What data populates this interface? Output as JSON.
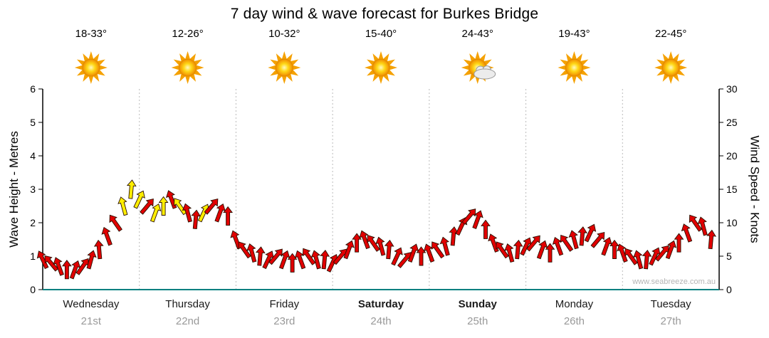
{
  "title": "7 day wind & wave forecast for Burkes Bridge",
  "watermark": "www.seabreeze.com.au",
  "colors": {
    "arrow_red": "#e10000",
    "arrow_yellow": "#ffee00",
    "arrow_outline": "#2a1000",
    "axis": "#000000",
    "grid": "#bbbbbb",
    "baseline_teal": "#008080",
    "temp_text": "#000000",
    "day_text": "#1a1a1a",
    "date_text": "#999999",
    "sun_ray": "#f5a100",
    "cloud": "#ececec"
  },
  "forecast_days": [
    {
      "temp": "18-33°",
      "icon": "sun-icon",
      "day": "Wednesday",
      "date": "21st",
      "weekend": false
    },
    {
      "temp": "12-26°",
      "icon": "sun-icon",
      "day": "Thursday",
      "date": "22nd",
      "weekend": false
    },
    {
      "temp": "10-32°",
      "icon": "sun-icon",
      "day": "Friday",
      "date": "23rd",
      "weekend": false
    },
    {
      "temp": "15-40°",
      "icon": "sun-icon",
      "day": "Saturday",
      "date": "24th",
      "weekend": true
    },
    {
      "temp": "24-43°",
      "icon": "sun-cloud-icon",
      "day": "Sunday",
      "date": "25th",
      "weekend": true
    },
    {
      "temp": "19-43°",
      "icon": "sun-icon",
      "day": "Monday",
      "date": "26th",
      "weekend": false
    },
    {
      "temp": "22-45°",
      "icon": "sun-icon",
      "day": "Tuesday",
      "date": "27th",
      "weekend": false
    }
  ],
  "chart_data": {
    "type": "scatter",
    "title": "7 day wind & wave forecast for Burkes Bridge",
    "marker": "wind-arrow",
    "x_axis": {
      "unit": "hours",
      "range": [
        0,
        168
      ],
      "day_boundaries_hours": [
        0,
        24,
        48,
        72,
        96,
        120,
        144,
        168
      ],
      "categories": [
        "Wednesday 21st",
        "Thursday 22nd",
        "Friday 23rd",
        "Saturday 24th",
        "Sunday 25th",
        "Monday 26th",
        "Tuesday 27th"
      ]
    },
    "y_left": {
      "label": "Wave Height - Metres",
      "range": [
        0,
        6
      ],
      "ticks": [
        0,
        1,
        2,
        3,
        4,
        5,
        6
      ]
    },
    "y_right": {
      "label": "Wind Speed - Knots",
      "range": [
        0,
        30
      ],
      "ticks": [
        0,
        5,
        10,
        15,
        20,
        25,
        30
      ]
    },
    "grid": {
      "vertical_day_lines": true,
      "style": "dotted"
    },
    "columns": [
      "hour",
      "wind_knots",
      "arrow_direction_deg",
      "color"
    ],
    "points": [
      [
        0,
        4.5,
        -25,
        "R"
      ],
      [
        2,
        4,
        -40,
        "R"
      ],
      [
        4,
        3.5,
        -20,
        "R"
      ],
      [
        6,
        3,
        0,
        "R"
      ],
      [
        8,
        3,
        20,
        "R"
      ],
      [
        10,
        3.5,
        35,
        "R"
      ],
      [
        12,
        4.5,
        15,
        "R"
      ],
      [
        14,
        6,
        -5,
        "R"
      ],
      [
        16,
        8,
        -20,
        "R"
      ],
      [
        18,
        10,
        -35,
        "R"
      ],
      [
        20,
        12.5,
        -15,
        "Y"
      ],
      [
        22,
        15,
        5,
        "Y"
      ],
      [
        24,
        13.5,
        25,
        "Y"
      ],
      [
        26,
        12.5,
        40,
        "R"
      ],
      [
        28,
        11.5,
        20,
        "Y"
      ],
      [
        30,
        12.5,
        0,
        "Y"
      ],
      [
        32,
        13.5,
        -20,
        "R"
      ],
      [
        34,
        12.5,
        -35,
        "Y"
      ],
      [
        36,
        11.5,
        -15,
        "R"
      ],
      [
        38,
        10.5,
        5,
        "R"
      ],
      [
        40,
        11.5,
        25,
        "Y"
      ],
      [
        42,
        12.5,
        40,
        "R"
      ],
      [
        44,
        11.5,
        20,
        "R"
      ],
      [
        46,
        11,
        0,
        "R"
      ],
      [
        48,
        7.5,
        -20,
        "R"
      ],
      [
        50,
        6,
        -35,
        "R"
      ],
      [
        52,
        5.5,
        -15,
        "R"
      ],
      [
        54,
        5,
        5,
        "R"
      ],
      [
        56,
        4.5,
        25,
        "R"
      ],
      [
        58,
        5,
        40,
        "R"
      ],
      [
        60,
        4.5,
        20,
        "R"
      ],
      [
        62,
        4,
        0,
        "R"
      ],
      [
        64,
        4.5,
        -20,
        "R"
      ],
      [
        66,
        5,
        -35,
        "R"
      ],
      [
        68,
        4.5,
        -15,
        "R"
      ],
      [
        70,
        4.5,
        5,
        "R"
      ],
      [
        72,
        4,
        25,
        "R"
      ],
      [
        74,
        5,
        40,
        "R"
      ],
      [
        76,
        6,
        20,
        "R"
      ],
      [
        78,
        7,
        0,
        "R"
      ],
      [
        80,
        7.5,
        -20,
        "R"
      ],
      [
        82,
        7,
        -35,
        "R"
      ],
      [
        84,
        6.5,
        -15,
        "R"
      ],
      [
        86,
        6,
        5,
        "R"
      ],
      [
        88,
        5,
        25,
        "R"
      ],
      [
        90,
        4.5,
        40,
        "R"
      ],
      [
        92,
        5.5,
        20,
        "R"
      ],
      [
        94,
        5,
        0,
        "R"
      ],
      [
        96,
        5.5,
        -20,
        "R"
      ],
      [
        98,
        6,
        -35,
        "R"
      ],
      [
        100,
        6.5,
        -15,
        "R"
      ],
      [
        102,
        8,
        5,
        "R"
      ],
      [
        104,
        9.5,
        25,
        "R"
      ],
      [
        106,
        11,
        40,
        "R"
      ],
      [
        108,
        10.5,
        20,
        "R"
      ],
      [
        110,
        9,
        0,
        "R"
      ],
      [
        112,
        7,
        -20,
        "R"
      ],
      [
        114,
        6,
        -35,
        "R"
      ],
      [
        116,
        5.5,
        -15,
        "R"
      ],
      [
        118,
        6,
        5,
        "R"
      ],
      [
        120,
        6.5,
        25,
        "R"
      ],
      [
        122,
        7,
        40,
        "R"
      ],
      [
        124,
        6,
        20,
        "R"
      ],
      [
        126,
        5.5,
        0,
        "R"
      ],
      [
        128,
        6.5,
        -20,
        "R"
      ],
      [
        130,
        7,
        -35,
        "R"
      ],
      [
        132,
        7.5,
        -15,
        "R"
      ],
      [
        134,
        8,
        5,
        "R"
      ],
      [
        136,
        8.5,
        25,
        "R"
      ],
      [
        138,
        7.5,
        40,
        "R"
      ],
      [
        140,
        6.5,
        20,
        "R"
      ],
      [
        142,
        6,
        0,
        "R"
      ],
      [
        144,
        5.5,
        -20,
        "R"
      ],
      [
        146,
        5,
        -35,
        "R"
      ],
      [
        148,
        4.5,
        -15,
        "R"
      ],
      [
        150,
        4.5,
        5,
        "R"
      ],
      [
        152,
        5,
        25,
        "R"
      ],
      [
        154,
        5.5,
        40,
        "R"
      ],
      [
        156,
        6,
        20,
        "R"
      ],
      [
        158,
        7,
        0,
        "R"
      ],
      [
        160,
        8.5,
        -20,
        "R"
      ],
      [
        162,
        10,
        -35,
        "R"
      ],
      [
        164,
        9.5,
        -15,
        "R"
      ],
      [
        166,
        7.5,
        5,
        "R"
      ]
    ]
  }
}
